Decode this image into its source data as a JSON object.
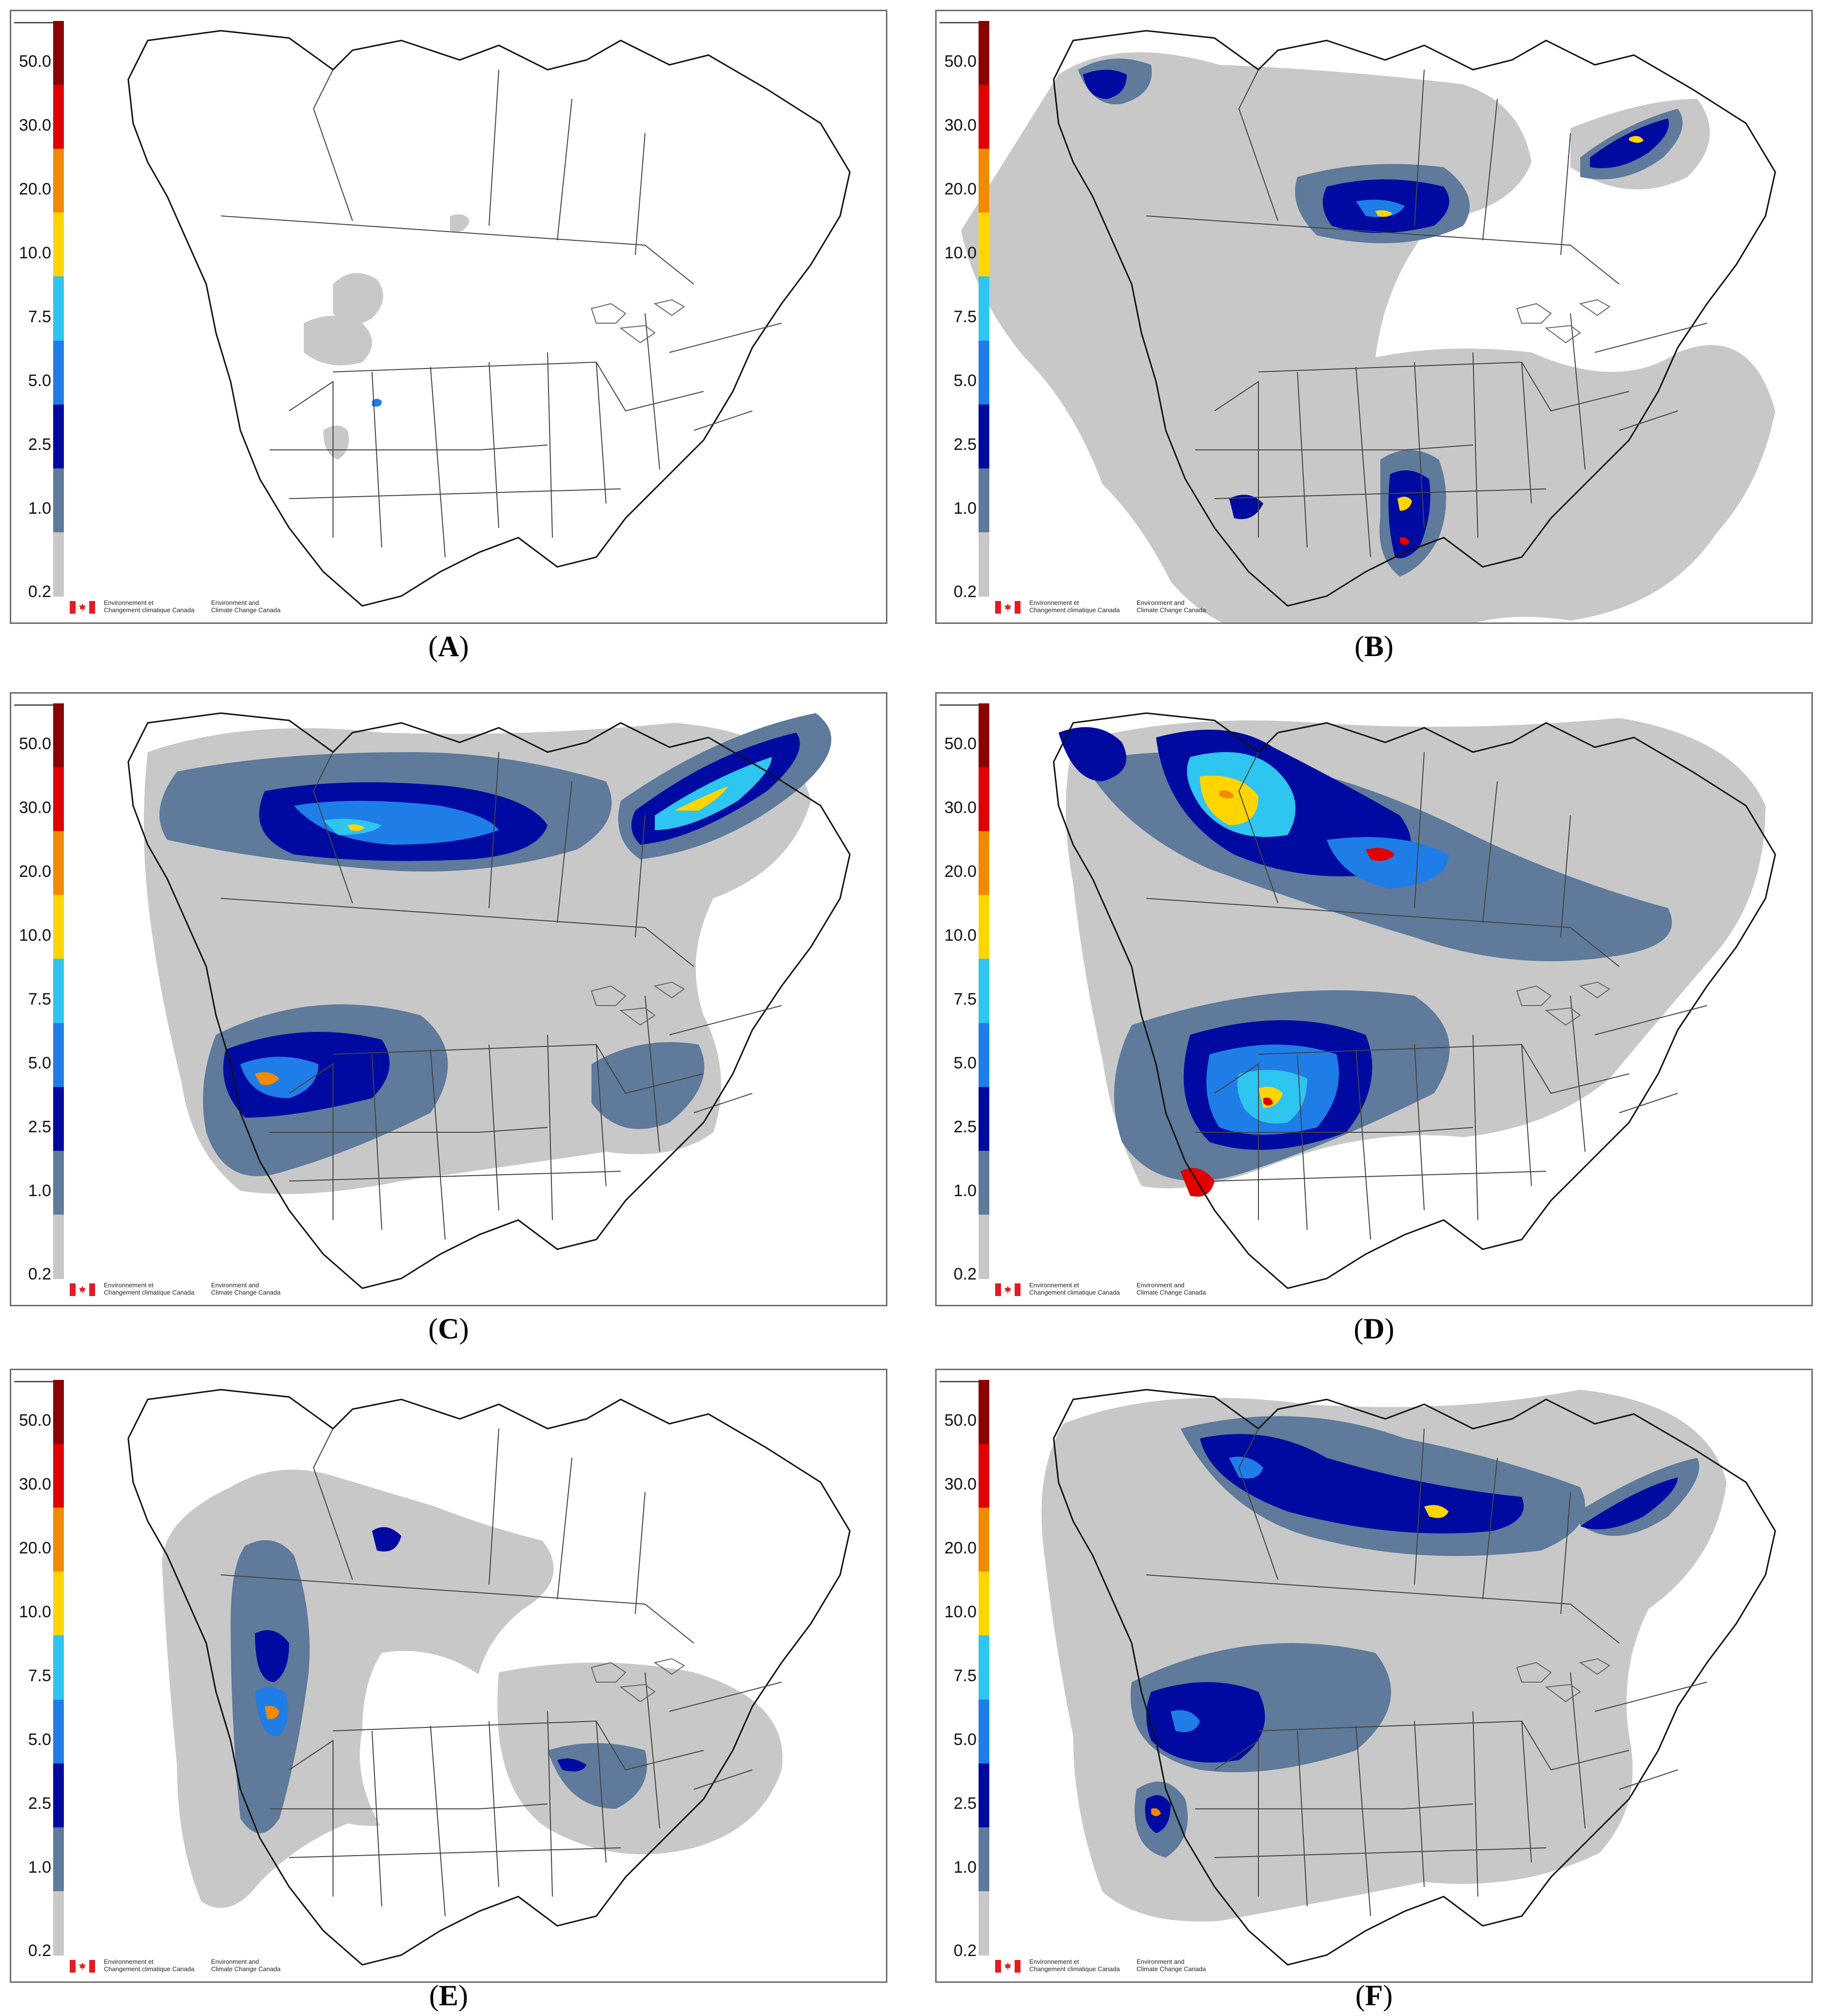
{
  "legend": {
    "ticks": [
      "50.0",
      "30.0",
      "20.0",
      "10.0",
      "7.5",
      "5.0",
      "2.5",
      "1.0",
      "0.2"
    ],
    "colors": [
      "#8b0000",
      "#e10000",
      "#f08a00",
      "#ffd500",
      "#2ec5f0",
      "#1f7de8",
      "#000aa0",
      "#5f7a9a",
      "#c8c8c8"
    ]
  },
  "footer": {
    "fr": "Environnement et\nChangement climatique Canada",
    "en": "Environment and\nClimate Change Canada"
  },
  "panels": [
    {
      "label": "A"
    },
    {
      "label": "B"
    },
    {
      "label": "C"
    },
    {
      "label": "D"
    },
    {
      "label": "E"
    },
    {
      "label": "F"
    }
  ]
}
